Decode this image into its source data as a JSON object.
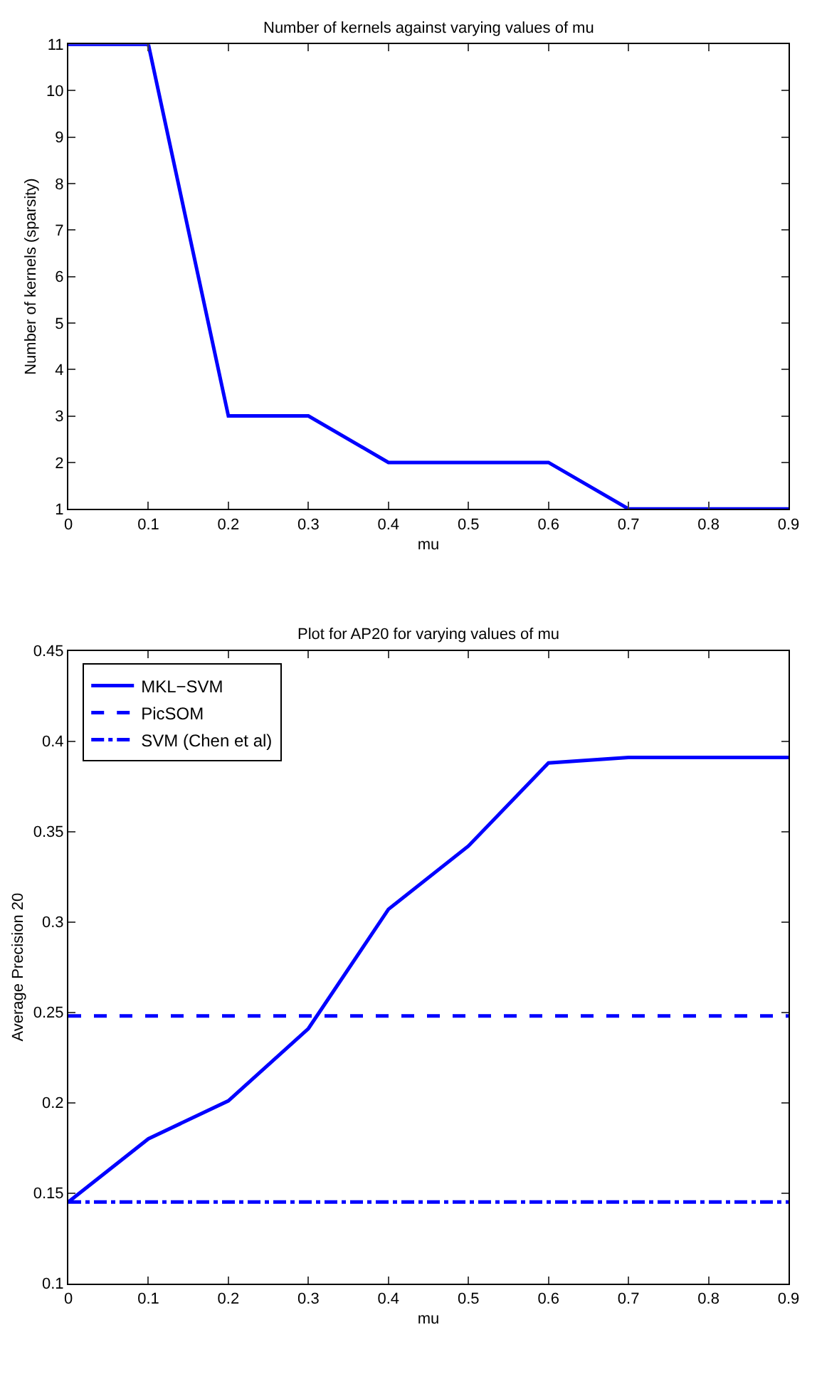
{
  "chart_data": [
    {
      "type": "line",
      "title": "Number of kernels against varying values of mu",
      "xlabel": "mu",
      "ylabel": "Number of kernels (sparsity)",
      "x": [
        0,
        0.1,
        0.2,
        0.3,
        0.4,
        0.5,
        0.6,
        0.7,
        0.8,
        0.9
      ],
      "series": [
        {
          "color": "#0000ff",
          "values": [
            11,
            11,
            3,
            3,
            2,
            2,
            2,
            1,
            1,
            1
          ],
          "line_style": "solid"
        }
      ],
      "xlim": [
        0,
        0.9
      ],
      "xticks": [
        0,
        0.1,
        0.2,
        0.3,
        0.4,
        0.5,
        0.6,
        0.7,
        0.8,
        0.9
      ],
      "ylim": [
        1,
        11
      ],
      "yticks": [
        1,
        2,
        3,
        4,
        5,
        6,
        7,
        8,
        9,
        10,
        11
      ],
      "legend": false,
      "marker": "none"
    },
    {
      "type": "line",
      "title": "Plot for AP20 for varying values of mu",
      "xlabel": "mu",
      "ylabel": "Average Precision 20",
      "x": [
        0,
        0.1,
        0.2,
        0.3,
        0.4,
        0.5,
        0.6,
        0.7,
        0.8,
        0.9
      ],
      "series": [
        {
          "name": "MKL−SVM",
          "color": "#0000ff",
          "line_style": "solid",
          "values": [
            0.145,
            0.18,
            0.201,
            0.241,
            0.307,
            0.342,
            0.388,
            0.391,
            0.391,
            0.391
          ]
        },
        {
          "name": "PicSOM",
          "color": "#0000ff",
          "line_style": "dashed",
          "values": [
            0.248,
            0.248,
            0.248,
            0.248,
            0.248,
            0.248,
            0.248,
            0.248,
            0.248,
            0.248
          ]
        },
        {
          "name": "SVM (Chen et al)",
          "color": "#0000ff",
          "line_style": "dashdot",
          "values": [
            0.145,
            0.145,
            0.145,
            0.145,
            0.145,
            0.145,
            0.145,
            0.145,
            0.145,
            0.145
          ]
        }
      ],
      "xlim": [
        0,
        0.9
      ],
      "xticks": [
        0,
        0.1,
        0.2,
        0.3,
        0.4,
        0.5,
        0.6,
        0.7,
        0.8,
        0.9
      ],
      "ylim": [
        0.1,
        0.45
      ],
      "yticks": [
        0.1,
        0.15,
        0.2,
        0.25,
        0.3,
        0.35,
        0.4,
        0.45
      ],
      "legend": "top left",
      "marker": "none"
    }
  ]
}
